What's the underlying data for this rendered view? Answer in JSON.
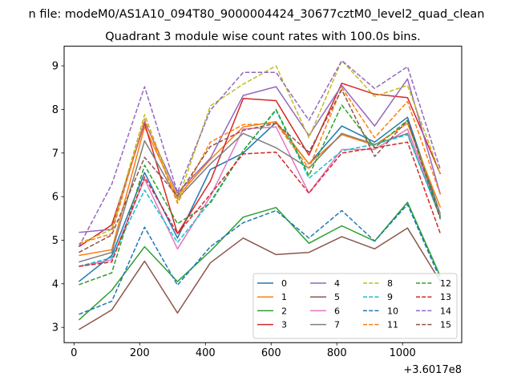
{
  "chart_data": {
    "type": "line",
    "suptitle": "n file: modeM0/AS1A10_094T80_9000004424_30677cztM0_level2_quad_clean",
    "title": "Quadrant 3 module wise count rates with 100.0s bins.",
    "xlabel": "",
    "ylabel": "",
    "x_offset_label": "+3.6017e8",
    "x": [
      15,
      115,
      215,
      315,
      415,
      515,
      615,
      715,
      815,
      915,
      1015,
      1115
    ],
    "xlim": [
      -30,
      1180
    ],
    "ylim": [
      2.65,
      9.45
    ],
    "x_ticks": [
      0,
      200,
      400,
      600,
      800,
      1000
    ],
    "y_ticks": [
      3,
      4,
      5,
      6,
      7,
      8,
      9
    ],
    "legend_position": "lower-right",
    "legend_columns": 4,
    "grid": false,
    "series": [
      {
        "name": "0",
        "color": "#1f77b4",
        "dash": "solid",
        "values": [
          4.05,
          4.65,
          6.55,
          5.05,
          6.62,
          7.0,
          7.7,
          6.75,
          7.62,
          7.25,
          7.82,
          5.6
        ]
      },
      {
        "name": "1",
        "color": "#ff7f0e",
        "dash": "solid",
        "values": [
          4.65,
          4.78,
          7.6,
          6.0,
          6.85,
          7.6,
          7.72,
          6.75,
          7.42,
          7.18,
          7.68,
          5.75
        ]
      },
      {
        "name": "2",
        "color": "#2ca02c",
        "dash": "solid",
        "values": [
          3.17,
          3.85,
          4.85,
          4.05,
          4.75,
          5.53,
          5.75,
          4.93,
          5.33,
          4.98,
          5.87,
          4.17
        ]
      },
      {
        "name": "3",
        "color": "#d62728",
        "dash": "solid",
        "values": [
          4.85,
          5.35,
          7.68,
          5.15,
          6.35,
          8.25,
          8.2,
          6.95,
          8.6,
          8.35,
          8.27,
          6.52
        ]
      },
      {
        "name": "4",
        "color": "#9467bd",
        "dash": "solid",
        "values": [
          5.18,
          5.25,
          7.72,
          6.08,
          6.88,
          8.32,
          8.52,
          7.4,
          8.55,
          7.62,
          8.7,
          6.05
        ]
      },
      {
        "name": "5",
        "color": "#8c564b",
        "dash": "solid",
        "values": [
          2.95,
          3.4,
          4.52,
          3.33,
          4.48,
          5.05,
          4.67,
          4.72,
          5.08,
          4.8,
          5.28,
          4.05
        ]
      },
      {
        "name": "6",
        "color": "#e377c2",
        "dash": "solid",
        "values": [
          4.4,
          4.55,
          6.4,
          4.8,
          6.0,
          7.55,
          7.6,
          6.08,
          7.08,
          7.08,
          7.55,
          5.6
        ]
      },
      {
        "name": "7",
        "color": "#7f7f7f",
        "dash": "solid",
        "values": [
          4.5,
          4.72,
          7.28,
          5.95,
          6.75,
          7.45,
          7.12,
          6.65,
          7.45,
          7.2,
          7.45,
          5.52
        ]
      },
      {
        "name": "8",
        "color": "#bcbd22",
        "dash": "dashed",
        "values": [
          4.92,
          5.25,
          7.88,
          5.9,
          8.08,
          8.58,
          9.0,
          7.35,
          9.12,
          8.3,
          8.55,
          6.52
        ]
      },
      {
        "name": "9",
        "color": "#17becf",
        "dash": "dashed",
        "values": [
          4.4,
          4.6,
          6.15,
          4.95,
          5.88,
          7.05,
          7.98,
          6.42,
          7.05,
          7.2,
          7.42,
          5.52
        ]
      },
      {
        "name": "10",
        "color": "#1f77b4",
        "dash": "dashed",
        "values": [
          3.3,
          3.6,
          5.3,
          3.97,
          4.85,
          5.4,
          5.68,
          5.05,
          5.68,
          4.98,
          5.82,
          4.1
        ]
      },
      {
        "name": "11",
        "color": "#ff7f0e",
        "dash": "dashed",
        "values": [
          4.92,
          5.15,
          7.78,
          5.85,
          7.25,
          7.65,
          7.68,
          6.65,
          8.5,
          7.35,
          8.18,
          6.05
        ]
      },
      {
        "name": "12",
        "color": "#2ca02c",
        "dash": "dashed",
        "values": [
          3.98,
          4.25,
          6.72,
          5.38,
          5.85,
          7.05,
          8.0,
          6.48,
          8.1,
          7.12,
          7.75,
          5.55
        ]
      },
      {
        "name": "13",
        "color": "#d62728",
        "dash": "dashed",
        "values": [
          4.4,
          4.5,
          6.45,
          5.15,
          6.05,
          6.98,
          7.02,
          6.08,
          7.0,
          7.12,
          7.25,
          5.15
        ]
      },
      {
        "name": "14",
        "color": "#9467bd",
        "dash": "dashed",
        "values": [
          4.85,
          6.28,
          8.52,
          6.1,
          7.98,
          8.85,
          8.85,
          7.75,
          9.12,
          8.48,
          8.98,
          6.62
        ]
      },
      {
        "name": "15",
        "color": "#8c564b",
        "dash": "dashed",
        "values": [
          4.72,
          5.12,
          6.9,
          6.02,
          7.15,
          7.52,
          7.68,
          7.02,
          8.45,
          6.92,
          7.75,
          5.48
        ]
      }
    ]
  }
}
